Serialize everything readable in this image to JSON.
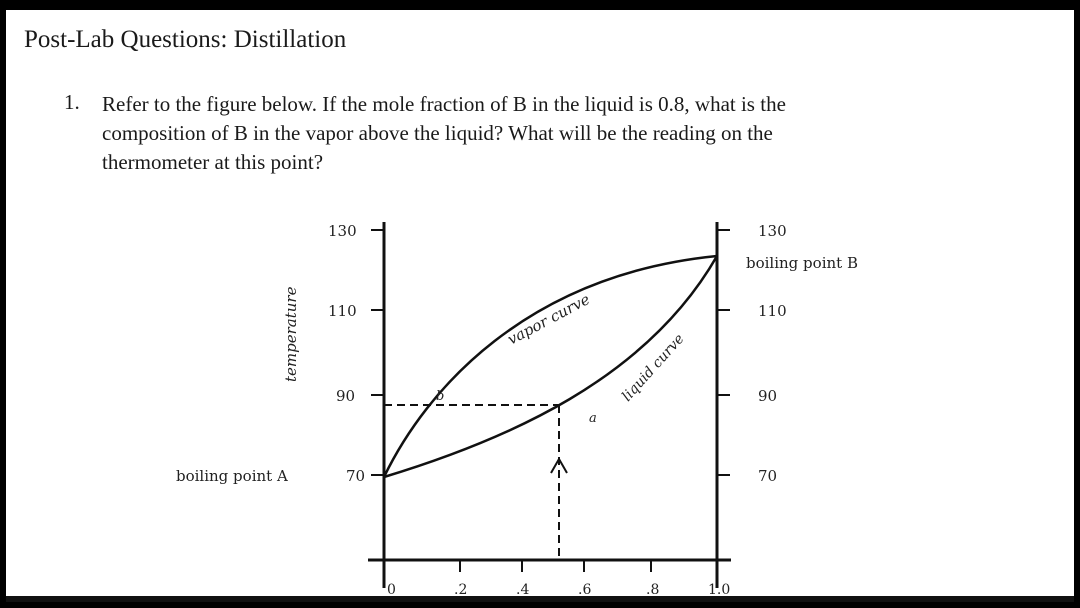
{
  "page": {
    "title": "Post-Lab Questions: Distillation"
  },
  "question": {
    "number": "1.",
    "lines": [
      "Refer to the figure below. If the mole fraction of B in the liquid is 0.8, what is the",
      "composition of B in the vapor above the liquid? What will be the reading on the",
      "thermometer at this point?"
    ]
  },
  "figure": {
    "y_axis_label": "temperature",
    "left_ticks": [
      "130",
      "110",
      "90",
      "70"
    ],
    "left_bottom_caption": "boiling point A",
    "right_ticks": [
      "130",
      "110",
      "90",
      "70"
    ],
    "right_top_caption": "boiling point B",
    "x_ticks": [
      "0",
      ".2",
      ".4",
      ".6",
      ".8",
      "1.0"
    ],
    "vapor_curve_label": "vapor curve",
    "liquid_curve_label": "liquid curve",
    "point_a_label": "a",
    "point_b_label": "b"
  },
  "chart_data": {
    "type": "line",
    "x": [
      0,
      0.2,
      0.4,
      0.6,
      0.8,
      1.0
    ],
    "series": [
      {
        "name": "vapor curve",
        "values": [
          70,
          88,
          102,
          114,
          123,
          128
        ]
      },
      {
        "name": "liquid curve",
        "values": [
          70,
          78,
          86,
          95,
          108,
          128
        ]
      }
    ],
    "xlim": [
      0,
      1.0
    ],
    "ylim": [
      60,
      135
    ],
    "yticks": [
      70,
      90,
      110,
      130
    ],
    "annotations": [
      {
        "label": "a",
        "x": 0.6,
        "y": 89
      },
      {
        "label": "b",
        "x": 0.2,
        "y": 89
      }
    ],
    "ylabel": "temperature"
  },
  "colors": {
    "page_background": "#ffffff",
    "frame": "#000000",
    "ink": "#1a1a1a"
  }
}
